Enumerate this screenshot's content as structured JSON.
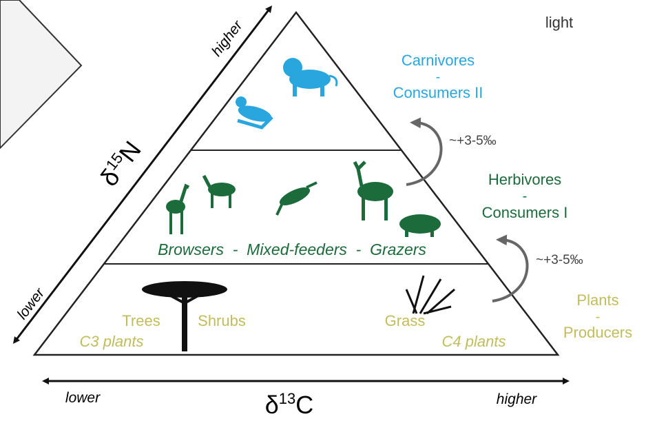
{
  "corner_label": "light",
  "n_axis": {
    "higher": "higher",
    "lower": "lower",
    "symbol": "δ",
    "sup": "15",
    "element": "N"
  },
  "c_axis": {
    "lower": "lower",
    "higher": "higher",
    "symbol": "δ",
    "sup": "13",
    "element": "C"
  },
  "carnivores": {
    "line1": "Carnivores",
    "dash": "-",
    "line2": "Consumers II"
  },
  "herbivores": {
    "line1": "Herbivores",
    "dash": "-",
    "line2": "Consumers I",
    "feeders": "Browsers  -  Mixed-feeders  -  Grazers"
  },
  "plants": {
    "line1": "Plants",
    "dash": "-",
    "line2": "Producers",
    "trees": "Trees",
    "shrubs": "Shrubs",
    "c3": "C3 plants",
    "grass": "Grass",
    "c4": "C4 plants"
  },
  "enrichment": [
    "~+3-5‰",
    "~+3-5‰"
  ]
}
